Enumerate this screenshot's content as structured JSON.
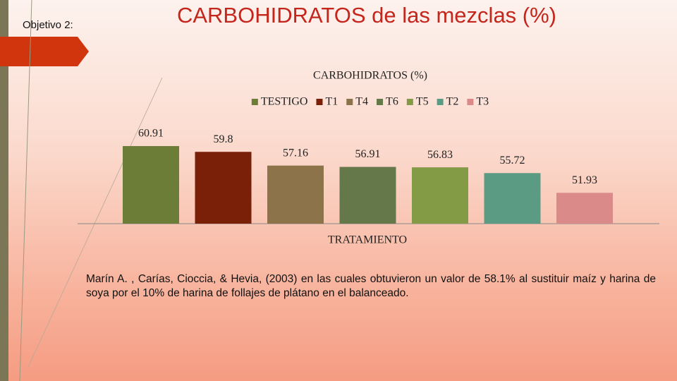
{
  "slide": {
    "label": "Objetivo 2:",
    "title": "CARBOHIDRATOS de las mezclas (%)",
    "paragraph": "Marín A. , Carías, Cioccia, & Hevia, (2003) en las cuales obtuvieron un valor de 58.1% al sustituir maíz y harina de soya por el 10% de harina de follajes de plátano en el balanceado."
  },
  "chart_data": {
    "type": "bar",
    "title": "CARBOHIDRATOS (%)",
    "x_label": "TRATAMIENTO",
    "legend": "top",
    "categories": [
      "TRATAMIENTO"
    ],
    "series": [
      {
        "name": "TESTIGO",
        "color": "#6b7d36",
        "values": [
          60.91
        ]
      },
      {
        "name": "T1",
        "color": "#7a2008",
        "values": [
          59.8
        ]
      },
      {
        "name": "T4",
        "color": "#8c7349",
        "values": [
          57.16
        ]
      },
      {
        "name": "T6",
        "color": "#65784a",
        "values": [
          56.91
        ]
      },
      {
        "name": "T5",
        "color": "#849b45",
        "values": [
          56.83
        ]
      },
      {
        "name": "T2",
        "color": "#5b9b84",
        "values": [
          55.72
        ]
      },
      {
        "name": "T3",
        "color": "#d98a89",
        "values": [
          51.93
        ]
      }
    ],
    "ylim": [
      46,
      62
    ]
  }
}
